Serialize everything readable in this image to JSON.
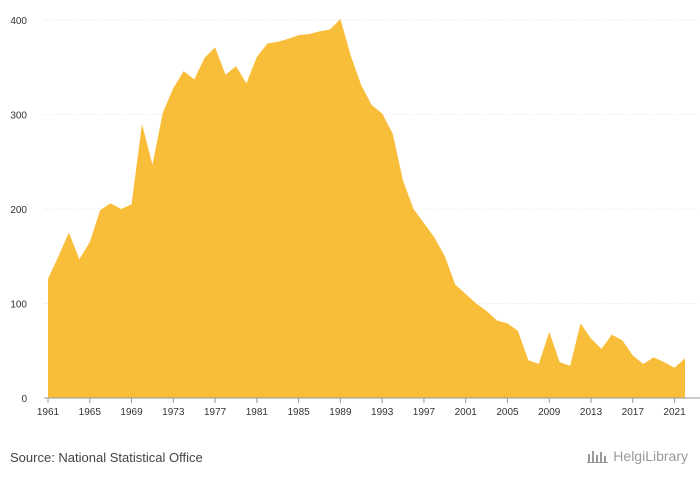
{
  "chart_data": {
    "type": "area",
    "title": "",
    "xlabel": "",
    "ylabel": "",
    "ylim": [
      0,
      400
    ],
    "yticks": [
      0,
      100,
      200,
      300,
      400
    ],
    "xticks": [
      1961,
      1965,
      1969,
      1973,
      1977,
      1981,
      1985,
      1989,
      1993,
      1997,
      2001,
      2005,
      2009,
      2013,
      2017,
      2021
    ],
    "grid": true,
    "color": "#F9BB2E",
    "x": [
      1961,
      1962,
      1963,
      1964,
      1965,
      1966,
      1967,
      1968,
      1969,
      1970,
      1971,
      1972,
      1973,
      1974,
      1975,
      1976,
      1977,
      1978,
      1979,
      1980,
      1981,
      1982,
      1983,
      1984,
      1985,
      1986,
      1987,
      1988,
      1989,
      1990,
      1991,
      1992,
      1993,
      1994,
      1995,
      1996,
      1997,
      1998,
      1999,
      2000,
      2001,
      2002,
      2003,
      2004,
      2005,
      2006,
      2007,
      2008,
      2009,
      2010,
      2011,
      2012,
      2013,
      2014,
      2015,
      2016,
      2017,
      2018,
      2019,
      2020,
      2021,
      2022
    ],
    "values": [
      126,
      150,
      175,
      147,
      165,
      199,
      206,
      200,
      205,
      290,
      247,
      302,
      328,
      346,
      337,
      360,
      371,
      342,
      351,
      333,
      361,
      375,
      377,
      380,
      384,
      385,
      388,
      390,
      401,
      362,
      331,
      310,
      301,
      280,
      230,
      200,
      185,
      170,
      150,
      120,
      110,
      100,
      92,
      82,
      79,
      71,
      40,
      36,
      70,
      38,
      34,
      79,
      63,
      52,
      67,
      61,
      45,
      36,
      43,
      38,
      32,
      42
    ]
  },
  "footer": {
    "source_text": "Source: National Statistical Office",
    "brand_text": "HelgiLibrary"
  }
}
